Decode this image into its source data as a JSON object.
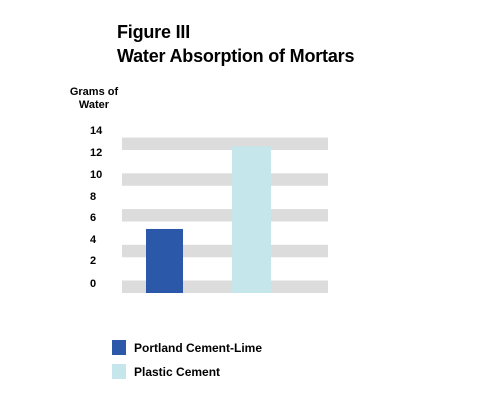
{
  "chart_data": {
    "type": "bar",
    "title": "Figure III",
    "subtitle": "Water Absorption of Mortars",
    "ylabel": "Grams of Water",
    "ylim": [
      0,
      14
    ],
    "yticks": [
      "14",
      "12",
      "10",
      "8",
      "6",
      "4",
      "2",
      "0"
    ],
    "grid": "alternating horizontal bands",
    "legend_position": "bottom-left",
    "series": [
      {
        "name": "Portland Cement-Lime",
        "value": 5.5,
        "color": "#2b58a8"
      },
      {
        "name": "Plastic Cement",
        "value": 12.6,
        "color": "#c5e6ea"
      }
    ],
    "band_color": "#dcdcdc"
  }
}
